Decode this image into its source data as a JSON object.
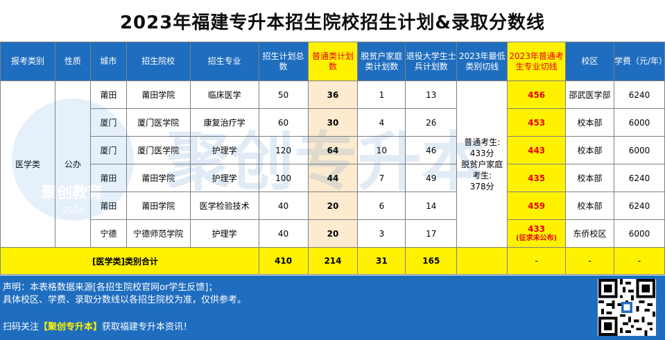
{
  "title": "2023年福建专升本招生院校招生计划&录取分数线",
  "colors": {
    "header_blue": "#1f6dbf",
    "highlight_yellow": "#fff200",
    "plan_peach": "#fdebd0",
    "red": "#e60012"
  },
  "table": {
    "headers": {
      "category": "报考类别",
      "nature": "性质",
      "city": "城市",
      "school": "招生院校",
      "major": "招生专业",
      "total_plan": "招生计划总数",
      "regular_plan": "普通类计划数",
      "poverty_plan": "脱贫户家庭类计划数",
      "veteran_plan": "退役大学生士兵计划数",
      "min_line": "2023年最低类别切线",
      "major_cut": "2023年普通考生专业切线",
      "campus": "校区",
      "tuition": "学费（元/年）"
    },
    "category_value": "医学类",
    "nature_value": "公办",
    "min_line_value": {
      "line1": "普通考生:",
      "line2": "433分",
      "line3": "脱贫户家庭",
      "line4": "考生:",
      "line5": "378分"
    },
    "rows": [
      {
        "city": "莆田",
        "school": "莆田学院",
        "major": "临床医学",
        "total": "50",
        "regular": "36",
        "poverty": "1",
        "veteran": "13",
        "cut": "456",
        "cut_note": "",
        "campus": "邵武医学部",
        "tuition": "6240"
      },
      {
        "city": "厦门",
        "school": "厦门医学院",
        "major": "康复治疗学",
        "total": "60",
        "regular": "30",
        "poverty": "4",
        "veteran": "26",
        "cut": "453",
        "cut_note": "",
        "campus": "校本部",
        "tuition": "6000"
      },
      {
        "city": "厦门",
        "school": "厦门医学院",
        "major": "护理学",
        "total": "120",
        "regular": "64",
        "poverty": "10",
        "veteran": "46",
        "cut": "443",
        "cut_note": "",
        "campus": "校本部",
        "tuition": "6000"
      },
      {
        "city": "莆田",
        "school": "莆田学院",
        "major": "护理学",
        "total": "100",
        "regular": "44",
        "poverty": "7",
        "veteran": "49",
        "cut": "435",
        "cut_note": "",
        "campus": "校本部",
        "tuition": "6240"
      },
      {
        "city": "莆田",
        "school": "莆田学院",
        "major": "医学检验技术",
        "total": "40",
        "regular": "20",
        "poverty": "6",
        "veteran": "14",
        "cut": "459",
        "cut_note": "",
        "campus": "校本部",
        "tuition": "6240"
      },
      {
        "city": "宁德",
        "school": "宁德师范学院",
        "major": "护理学",
        "total": "40",
        "regular": "20",
        "poverty": "3",
        "veteran": "17",
        "cut": "433",
        "cut_note": "(征求未公布)",
        "campus": "东侨校区",
        "tuition": "6000"
      }
    ],
    "total_row": {
      "label": "[医学类]类别合计",
      "total": "410",
      "regular": "214",
      "poverty": "31",
      "veteran": "165",
      "cut": "-",
      "campus": "-",
      "tuition": "-"
    }
  },
  "notes": {
    "line1": "声明：本表格数据来源[各招生院校官网or学生反馈]；",
    "line2": "具体校区、学费、录取分数线以各招生院校为准，仅供参考。",
    "line3_prefix": "扫码关注",
    "line3_brand": "【聚创专升本】",
    "line3_suffix": "获取福建专升本资讯！"
  },
  "watermark": {
    "text": "聚创专升本",
    "logo_text": "聚创教育",
    "logo_year": "2004"
  },
  "qr_icon": "qr-code-icon"
}
